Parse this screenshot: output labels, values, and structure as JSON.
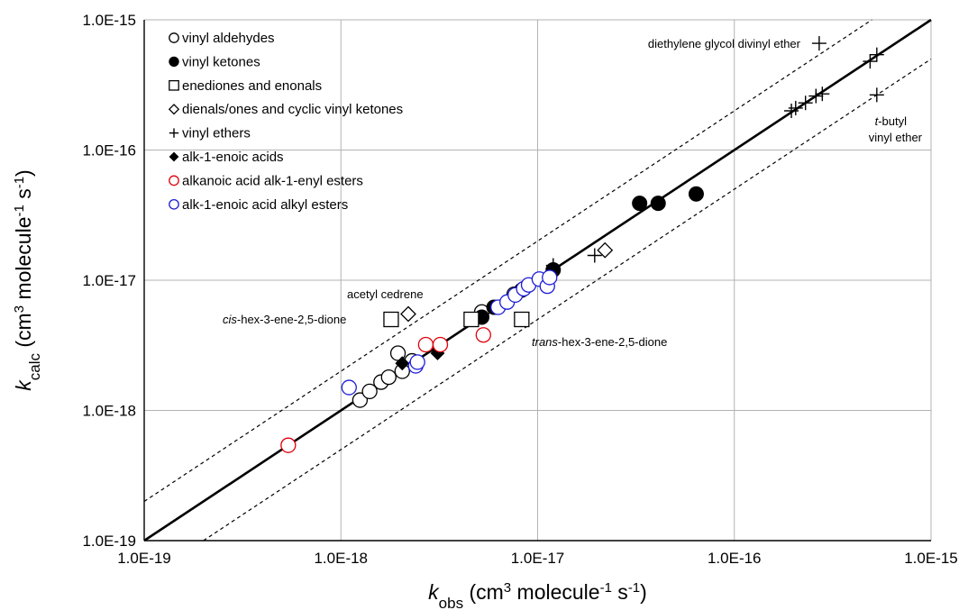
{
  "chart_data": {
    "type": "scatter",
    "xscale": "log",
    "yscale": "log",
    "xlim": [
      1e-19,
      1e-15
    ],
    "ylim": [
      1e-19,
      1e-15
    ],
    "grid": true,
    "legend_position": "top-left",
    "x_ticks": [
      "1.0E-19",
      "1.0E-18",
      "1.0E-17",
      "1.0E-16",
      "1.0E-15"
    ],
    "y_ticks": [
      "1.0E-19",
      "1.0E-18",
      "1.0E-17",
      "1.0E-16",
      "1.0E-15"
    ],
    "xlabel": {
      "k": "k",
      "sub": "obs",
      "unit_pre": " (cm",
      "exp1": "3",
      "unit_mid": " molecule",
      "exp2": "-1",
      "unit_mid2": " s",
      "exp3": "-1",
      "unit_post": ")"
    },
    "ylabel": {
      "k": "k",
      "sub": "calc",
      "unit_pre": " (cm",
      "exp1": "3",
      "unit_mid": " molecule",
      "exp2": "-1",
      "unit_mid2": " s",
      "exp3": "-1",
      "unit_post": ")"
    },
    "lines": [
      {
        "style": "solid",
        "x": [
          1e-19,
          1e-15
        ],
        "y": [
          1e-19,
          1e-15
        ]
      },
      {
        "style": "dashed",
        "x": [
          1e-19,
          5e-16
        ],
        "y": [
          2e-19,
          1e-15
        ]
      },
      {
        "style": "dashed",
        "x": [
          2e-19,
          1e-15
        ],
        "y": [
          1e-19,
          5e-16
        ]
      }
    ],
    "series": [
      {
        "name": "vinyl aldehydes",
        "marker": "open-circle",
        "color": "#000000",
        "points": [
          [
            1.25e-18,
            1.2e-18
          ],
          [
            1.4e-18,
            1.4e-18
          ],
          [
            1.6e-18,
            1.65e-18
          ],
          [
            1.75e-18,
            1.8e-18
          ],
          [
            1.95e-18,
            2.75e-18
          ],
          [
            2.05e-18,
            2e-18
          ],
          [
            2.3e-18,
            2.4e-18
          ],
          [
            5.2e-18,
            5.7e-18
          ],
          [
            7.6e-18,
            7.8e-18
          ]
        ]
      },
      {
        "name": "vinyl ketones",
        "marker": "filled-circle",
        "color": "#000000",
        "points": [
          [
            5.2e-18,
            5.2e-18
          ],
          [
            6e-18,
            6.2e-18
          ],
          [
            8.3e-18,
            8.4e-18
          ],
          [
            1.2e-17,
            1.2e-17
          ],
          [
            3.3e-17,
            3.9e-17
          ],
          [
            4.1e-17,
            3.9e-17
          ],
          [
            6.4e-17,
            4.6e-17
          ]
        ]
      },
      {
        "name": "enediones and enonals",
        "marker": "open-square",
        "color": "#000000",
        "points": [
          [
            1.8e-18,
            5e-18
          ],
          [
            4.6e-18,
            5e-18
          ],
          [
            8.3e-18,
            5e-18
          ]
        ]
      },
      {
        "name": "dienals/ones and cyclic vinyl ketones",
        "marker": "open-diamond",
        "color": "#000000",
        "points": [
          [
            2.2e-18,
            5.5e-18
          ],
          [
            2.2e-17,
            1.7e-17
          ]
        ]
      },
      {
        "name": "vinyl ethers",
        "marker": "plus",
        "color": "#000000",
        "points": [
          [
            2.7e-16,
            6.6e-16
          ],
          [
            5.3e-16,
            5.4e-16
          ],
          [
            4.9e-16,
            4.8e-16
          ],
          [
            2.8e-16,
            2.7e-16
          ],
          [
            2.6e-16,
            2.6e-16
          ],
          [
            2.3e-16,
            2.3e-16
          ],
          [
            2.05e-16,
            2.1e-16
          ],
          [
            1.95e-16,
            2e-16
          ],
          [
            5.3e-16,
            2.65e-16
          ],
          [
            1.95e-17,
            1.55e-17
          ],
          [
            1.2e-17,
            1.3e-17
          ]
        ]
      },
      {
        "name": "alk-1-enoic acids",
        "marker": "filled-diamond",
        "color": "#000000",
        "points": [
          [
            2.05e-18,
            2.3e-18
          ],
          [
            3.1e-18,
            2.75e-18
          ]
        ]
      },
      {
        "name": "alkanoic acid alk-1-enyl esters",
        "marker": "open-circle",
        "color": "#e0000b",
        "points": [
          [
            5.4e-19,
            5.4e-19
          ],
          [
            2.7e-18,
            3.2e-18
          ],
          [
            3.2e-18,
            3.2e-18
          ],
          [
            5.3e-18,
            3.8e-18
          ]
        ]
      },
      {
        "name": "alk-1-enoic acid alkyl esters",
        "marker": "open-circle",
        "color": "#1c1cd6",
        "points": [
          [
            1.1e-18,
            1.5e-18
          ],
          [
            2.4e-18,
            2.2e-18
          ],
          [
            2.45e-18,
            2.35e-18
          ],
          [
            6.3e-18,
            6.2e-18
          ],
          [
            7e-18,
            6.8e-18
          ],
          [
            7.7e-18,
            7.7e-18
          ],
          [
            8.5e-18,
            8.6e-18
          ],
          [
            9e-18,
            9.2e-18
          ],
          [
            1.02e-17,
            1.02e-17
          ],
          [
            1.12e-17,
            9e-18
          ],
          [
            1.15e-17,
            1.05e-17
          ]
        ]
      }
    ],
    "annotations": [
      {
        "parts": [
          {
            "text": "diethylene glycol divinyl ether",
            "italic": false
          }
        ]
      },
      {
        "parts": [
          {
            "text": "t",
            "italic": true
          },
          {
            "text": "-butyl",
            "italic": false
          }
        ]
      },
      {
        "parts": [
          {
            "text": "vinyl ether",
            "italic": false
          }
        ]
      },
      {
        "parts": [
          {
            "text": "acetyl cedrene",
            "italic": false
          }
        ]
      },
      {
        "parts": [
          {
            "text": "cis",
            "italic": true
          },
          {
            "text": "-hex-3-ene-2,5-dione",
            "italic": false
          }
        ]
      },
      {
        "parts": [
          {
            "text": "trans",
            "italic": true
          },
          {
            "text": "-hex-3-ene-2,5-dione",
            "italic": false
          }
        ]
      }
    ]
  }
}
